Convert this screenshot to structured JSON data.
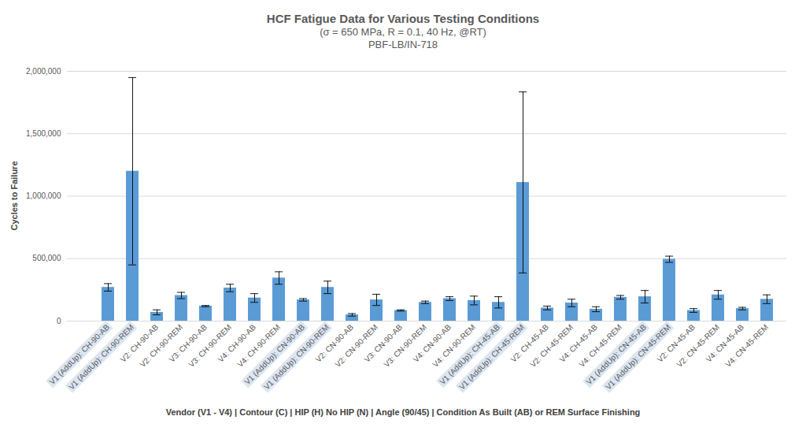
{
  "chart_data": {
    "type": "bar",
    "title": "HCF Fatigue Data for Various Testing Conditions",
    "subtitle": [
      "(σ = 650 MPa, R = 0.1, 40 Hz, @RT)",
      "PBF-LB/IN-718"
    ],
    "x_label": "Vendor (V1 - V4) | Contour (C) | HIP (H) No HIP (N) | Angle (90/45) | Condition As Built (AB) or REM Surface Finishing",
    "y_label": "Cycles to Failure",
    "categories": [
      "V1 (AddUp): CH-90-AB",
      "V1 (AddUp): CH-90-REM",
      "V2: CH-90-AB",
      "V2: CH-90-REM",
      "V3: CH-90-AB",
      "V3: CH-90-REM",
      "V4: CH-90-AB",
      "V4: CH-90-REM",
      "V1 (AddUp): CN-90-AB",
      "V1 (AddUp): CN-90-REM",
      "V2: CN-90-AB",
      "V2: CN-90-REM",
      "V3: CN-90-AB",
      "V3: CN-90-REM",
      "V4: CN-90-AB",
      "V4: CN-90-REM",
      "V1 (AddUp): CH-45-AB",
      "V1 (AddUp): CH-45-REM",
      "V2: CH-45-AB",
      "V2: CH-45-REM",
      "V4: CH-45-AB",
      "V4: CH-45-REM",
      "V1 (AddUp): CN-45-AB",
      "V1 (AddUp): CN-45-REM",
      "V2: CN-45-AB",
      "V2: CN-45-REM",
      "V4: CN-45-AB",
      "V4: CN-45-REM"
    ],
    "values": [
      270000,
      1200000,
      70000,
      205000,
      120000,
      265000,
      185000,
      345000,
      170000,
      270000,
      50000,
      170000,
      85000,
      150000,
      180000,
      165000,
      150000,
      1110000,
      105000,
      145000,
      95000,
      190000,
      195000,
      495000,
      85000,
      210000,
      100000,
      175000
    ],
    "error": [
      30000,
      750000,
      20000,
      25000,
      5000,
      30000,
      35000,
      50000,
      10000,
      50000,
      10000,
      45000,
      5000,
      10000,
      15000,
      35000,
      45000,
      725000,
      15000,
      30000,
      20000,
      15000,
      50000,
      25000,
      15000,
      35000,
      10000,
      35000
    ],
    "color": "#5b9bd5",
    "ylim": [
      0,
      2000000
    ],
    "yticks": [
      0,
      {
        "value": 500000,
        "label": "500,000"
      },
      {
        "value": 1000000,
        "label": "1,000,000"
      },
      {
        "value": 1500000,
        "label": "1,500,000"
      },
      {
        "value": 2000000,
        "label": "2,000,000"
      }
    ],
    "grid": true
  }
}
